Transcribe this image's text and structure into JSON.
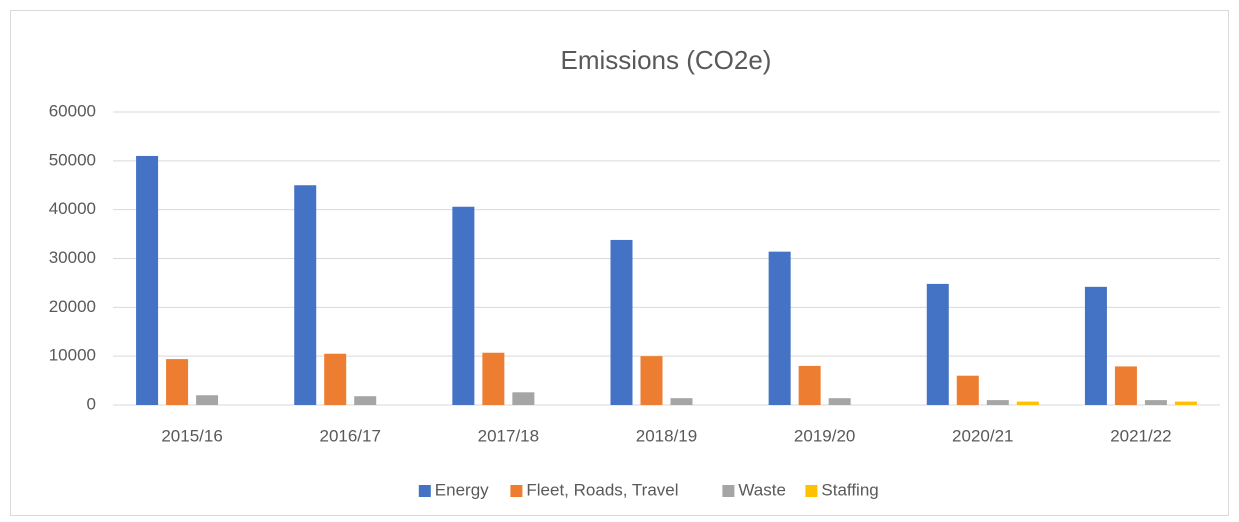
{
  "chart_data": {
    "type": "bar",
    "title": "Emissions (CO2e)",
    "categories": [
      "2015/16",
      "2016/17",
      "2017/18",
      "2018/19",
      "2019/20",
      "2020/21",
      "2021/22"
    ],
    "series": [
      {
        "name": "Energy",
        "color": "#4472c4",
        "values": [
          51000,
          45000,
          40600,
          33800,
          31400,
          24800,
          24200
        ]
      },
      {
        "name": "Fleet, Roads, Travel",
        "color": "#ed7d31",
        "values": [
          9400,
          10500,
          10700,
          10000,
          8000,
          6000,
          7900
        ]
      },
      {
        "name": "Waste",
        "color": "#a5a5a5",
        "values": [
          2000,
          1800,
          2600,
          1400,
          1400,
          1000,
          1000
        ]
      },
      {
        "name": "Staffing",
        "color": "#ffc000",
        "values": [
          0,
          0,
          0,
          0,
          0,
          700,
          700
        ]
      }
    ],
    "ylim": [
      0,
      60000
    ],
    "yticks": [
      0,
      10000,
      20000,
      30000,
      40000,
      50000,
      60000
    ],
    "grid": true,
    "legend": "bottom"
  }
}
